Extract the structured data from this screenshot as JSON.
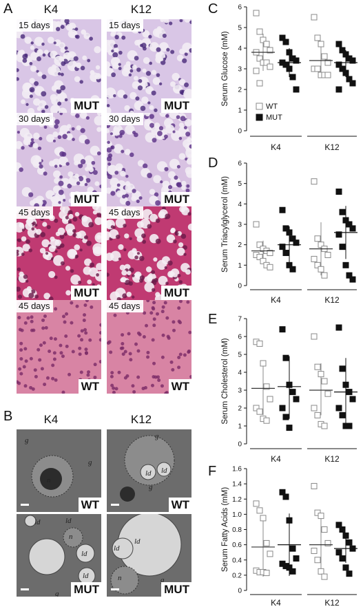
{
  "panels": {
    "A": "A",
    "B": "B",
    "C": "C",
    "D": "D",
    "E": "E",
    "F": "F"
  },
  "histology": {
    "columns": [
      "K4",
      "K12"
    ],
    "rows": [
      {
        "label_left": "15 days",
        "label_right": "15 days",
        "genotype": "MUT",
        "color_base": "#d9c6e6",
        "color_nuc": "#4a2a7a"
      },
      {
        "label_left": "30 days",
        "label_right": "30 days",
        "genotype": "MUT",
        "color_base": "#d8c2e2",
        "color_nuc": "#5a2f86"
      },
      {
        "label_left": "45 days",
        "label_right": "45 days",
        "genotype": "MUT",
        "color_base": "#c03a72",
        "color_nuc": "#6a1a4a"
      },
      {
        "label_left": "45 days",
        "label_right": "45 days",
        "genotype": "WT",
        "color_base": "#d884a4",
        "color_nuc": "#7a2a66"
      }
    ]
  },
  "em": {
    "columns": [
      "K4",
      "K12"
    ],
    "rows": [
      {
        "genotype": "WT",
        "left_labels": [
          "g",
          "g",
          "n"
        ],
        "right_labels": [
          "g",
          "ld",
          "ld",
          "g"
        ]
      },
      {
        "genotype": "MUT",
        "left_labels": [
          "ld",
          "ld",
          "n",
          "ld",
          "ld",
          "g"
        ],
        "right_labels": [
          "ld",
          "ld",
          "n",
          "g"
        ]
      }
    ]
  },
  "colors": {
    "wt_marker": "#ffffff",
    "wt_stroke": "#888888",
    "mut_marker": "#111111",
    "axis": "#111111"
  },
  "chart_data": [
    {
      "panel": "C",
      "type": "scatter",
      "ylabel": "Serum Glucose (mM)",
      "ylim": [
        0,
        6
      ],
      "yticks": [
        "0",
        "1",
        "2",
        "3",
        "4",
        "5",
        "6"
      ],
      "groups": [
        "K4",
        "K12"
      ],
      "legend": {
        "wt": "WT",
        "mut": "MUT",
        "placement": "bottom-left"
      },
      "series": [
        {
          "group": "K4",
          "genotype": "WT",
          "values": [
            5.7,
            4.8,
            4.4,
            4.2,
            3.9,
            3.8,
            3.5,
            3.3,
            3.3,
            3.1,
            2.9,
            2.3
          ],
          "mean": 3.8,
          "sd_low": 2.9,
          "sd_high": 4.7
        },
        {
          "group": "K4",
          "genotype": "MUT",
          "values": [
            4.5,
            4.3,
            3.8,
            3.5,
            3.4,
            3.3,
            3.2,
            3.0,
            2.6,
            2.0
          ],
          "mean": 3.3,
          "sd_low": 2.6,
          "sd_high": 4.0
        },
        {
          "group": "K12",
          "genotype": "WT",
          "values": [
            5.5,
            4.5,
            4.2,
            3.6,
            3.3,
            3.0,
            3.0,
            2.7,
            2.7,
            2.7
          ],
          "mean": 3.4,
          "sd_low": 2.6,
          "sd_high": 4.3
        },
        {
          "group": "K12",
          "genotype": "MUT",
          "values": [
            4.2,
            3.9,
            3.7,
            3.5,
            3.4,
            3.2,
            3.0,
            2.8,
            2.5,
            2.3,
            2.0
          ],
          "mean": 3.3,
          "sd_low": 2.6,
          "sd_high": 3.9
        }
      ]
    },
    {
      "panel": "D",
      "type": "scatter",
      "ylabel": "Serum Triacylglycerol (mM)",
      "ylim": [
        0,
        6
      ],
      "yticks": [
        "0",
        "1",
        "2",
        "3",
        "4",
        "5",
        "6"
      ],
      "groups": [
        "K4",
        "K12"
      ],
      "series": [
        {
          "group": "K4",
          "genotype": "WT",
          "values": [
            3.0,
            2.0,
            1.8,
            1.7,
            1.6,
            1.5,
            1.4,
            1.2,
            1.0,
            0.9
          ],
          "mean": 1.7,
          "sd_low": 1.2,
          "sd_high": 2.2
        },
        {
          "group": "K4",
          "genotype": "MUT",
          "values": [
            3.7,
            2.8,
            2.6,
            2.3,
            2.1,
            1.9,
            1.6,
            1.0,
            0.8
          ],
          "mean": 2.0,
          "sd_low": 1.1,
          "sd_high": 2.9
        },
        {
          "group": "K12",
          "genotype": "WT",
          "values": [
            5.1,
            2.3,
            2.0,
            1.8,
            1.5,
            1.3,
            1.0,
            0.8,
            0.5
          ],
          "mean": 1.8,
          "sd_low": 0.5,
          "sd_high": 3.1
        },
        {
          "group": "K12",
          "genotype": "MUT",
          "values": [
            4.6,
            3.6,
            3.2,
            3.0,
            2.8,
            2.5,
            1.9,
            1.0,
            0.5,
            0.3
          ],
          "mean": 2.6,
          "sd_low": 1.3,
          "sd_high": 3.9
        }
      ]
    },
    {
      "panel": "E",
      "type": "scatter",
      "ylabel": "Serum Cholesterol (mM)",
      "ylim": [
        0,
        7
      ],
      "yticks": [
        "0",
        "1",
        "2",
        "3",
        "4",
        "5",
        "6",
        "7"
      ],
      "groups": [
        "K4",
        "K12"
      ],
      "series": [
        {
          "group": "K4",
          "genotype": "WT",
          "values": [
            5.7,
            5.6,
            4.5,
            3.2,
            2.5,
            2.0,
            1.8,
            1.4,
            1.3
          ],
          "mean": 3.1,
          "sd_low": 1.6,
          "sd_high": 4.6
        },
        {
          "group": "K4",
          "genotype": "MUT",
          "values": [
            6.4,
            4.8,
            3.3,
            2.9,
            2.5,
            2.0,
            1.5,
            0.9
          ],
          "mean": 3.2,
          "sd_low": 1.4,
          "sd_high": 4.9
        },
        {
          "group": "K12",
          "genotype": "WT",
          "values": [
            6.0,
            4.3,
            3.9,
            3.5,
            2.8,
            2.0,
            1.6,
            1.1,
            1.0
          ],
          "mean": 3.0,
          "sd_low": 1.6,
          "sd_high": 4.5
        },
        {
          "group": "K12",
          "genotype": "MUT",
          "values": [
            6.5,
            4.2,
            3.3,
            2.9,
            2.5,
            2.0,
            1.6,
            1.0,
            1.0
          ],
          "mean": 2.9,
          "sd_low": 1.0,
          "sd_high": 4.8
        }
      ]
    },
    {
      "panel": "F",
      "type": "scatter",
      "ylabel": "Serum Fatty Acids (mM)",
      "ylim": [
        0,
        1.6
      ],
      "yticks": [
        "0",
        "0.2",
        "0.4",
        "0.6",
        "0.8",
        "1.0",
        "1.2",
        "1.4",
        "1.6"
      ],
      "groups": [
        "K4",
        "K12"
      ],
      "series": [
        {
          "group": "K4",
          "genotype": "WT",
          "values": [
            1.14,
            1.05,
            0.95,
            0.62,
            0.48,
            0.26,
            0.24,
            0.24,
            0.23
          ],
          "mean": 0.57,
          "sd_low": 0.18,
          "sd_high": 0.96
        },
        {
          "group": "K4",
          "genotype": "MUT",
          "values": [
            1.29,
            1.23,
            0.92,
            0.55,
            0.42,
            0.35,
            0.32,
            0.3,
            0.25
          ],
          "mean": 0.6,
          "sd_low": 0.19,
          "sd_high": 1.01
        },
        {
          "group": "K12",
          "genotype": "WT",
          "values": [
            1.37,
            1.02,
            0.98,
            0.8,
            0.62,
            0.52,
            0.4,
            0.25,
            0.18
          ],
          "mean": 0.6,
          "sd_low": 0.22,
          "sd_high": 1.0
        },
        {
          "group": "K12",
          "genotype": "MUT",
          "values": [
            0.86,
            0.8,
            0.72,
            0.63,
            0.55,
            0.5,
            0.42,
            0.3,
            0.22
          ],
          "mean": 0.55,
          "sd_low": 0.36,
          "sd_high": 0.72
        }
      ]
    }
  ]
}
